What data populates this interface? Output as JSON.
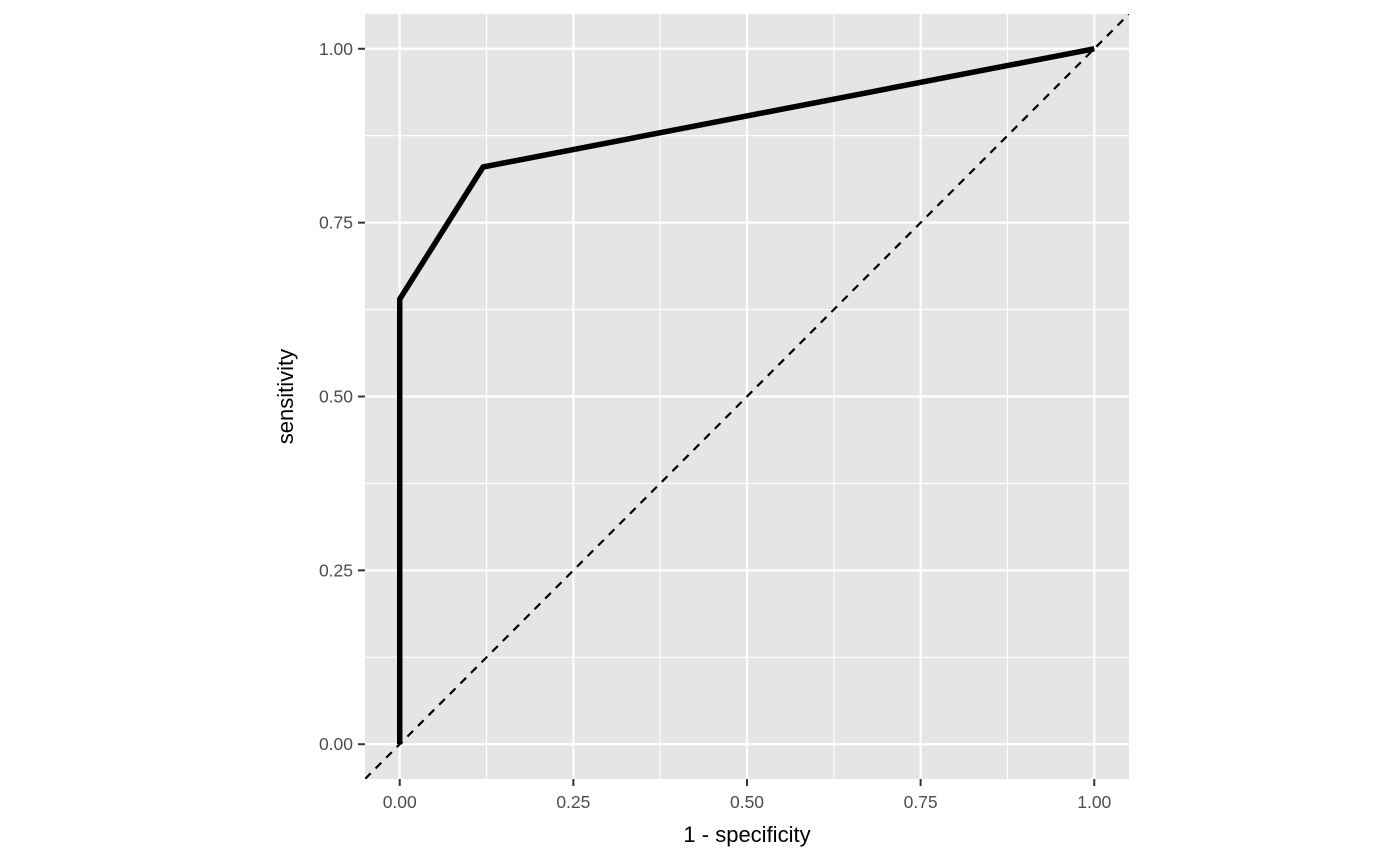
{
  "chart_data": {
    "type": "line",
    "title": "",
    "xlabel": "1 - specificity",
    "ylabel": "sensitivity",
    "xlim": [
      -0.05,
      1.05
    ],
    "ylim": [
      -0.05,
      1.05
    ],
    "x_ticks": [
      0,
      0.25,
      0.5,
      0.75,
      1
    ],
    "x_tick_labels": [
      "0.00",
      "0.25",
      "0.50",
      "0.75",
      "1.00"
    ],
    "y_ticks": [
      0,
      0.25,
      0.5,
      0.75,
      1
    ],
    "y_tick_labels": [
      "0.00",
      "0.25",
      "0.50",
      "0.75",
      "1.00"
    ],
    "grid": true,
    "background_color": "#e5e5e5",
    "grid_color": "#ffffff",
    "series": [
      {
        "style": "solid",
        "color": "#000000",
        "x": [
          0,
          0,
          0.12,
          1
        ],
        "y": [
          0,
          0.64,
          0.83,
          1
        ]
      }
    ],
    "reference_line": {
      "style": "dashed",
      "color": "#000000",
      "x": [
        -0.05,
        1.05
      ],
      "y": [
        -0.05,
        1.05
      ]
    }
  }
}
